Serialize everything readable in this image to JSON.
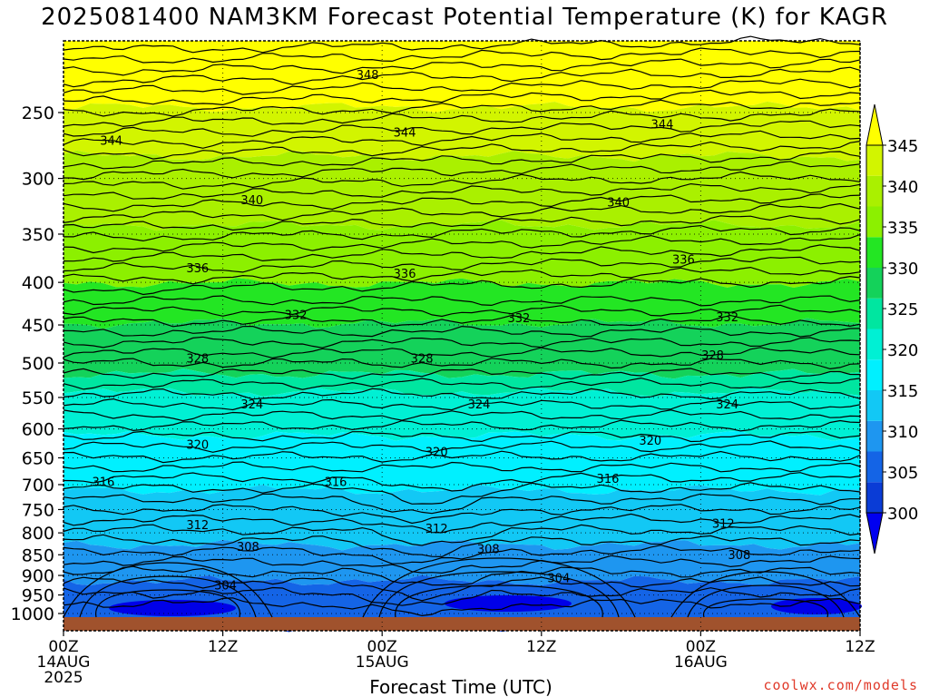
{
  "page": {
    "title": "2025081400 NAM3KM Forecast Potential Temperature (K) for KAGR",
    "credit": "coolwx.com/models"
  },
  "chart_data": {
    "type": "contour",
    "title": "2025081400 NAM3KM Forecast Potential Temperature (K) for KAGR",
    "xlabel": "Forecast Time (UTC)",
    "ylabel": "",
    "x_range_hours": [
      0,
      60
    ],
    "x_ticks": [
      {
        "hour": 0,
        "lines": [
          "00Z",
          "14AUG",
          "2025"
        ]
      },
      {
        "hour": 12,
        "lines": [
          "12Z"
        ]
      },
      {
        "hour": 24,
        "lines": [
          "00Z",
          "15AUG"
        ]
      },
      {
        "hour": 36,
        "lines": [
          "12Z"
        ]
      },
      {
        "hour": 48,
        "lines": [
          "00Z",
          "16AUG"
        ]
      },
      {
        "hour": 60,
        "lines": [
          "12Z"
        ]
      }
    ],
    "y_scale": "log-pressure",
    "y_range_hpa": [
      1040,
      200
    ],
    "y_ticks": [
      250,
      300,
      350,
      400,
      450,
      500,
      550,
      600,
      650,
      700,
      750,
      800,
      850,
      900,
      950,
      1000
    ],
    "grid": true,
    "colorbar": {
      "placement": "right",
      "levels": [
        300,
        305,
        310,
        315,
        320,
        325,
        330,
        335,
        340,
        345
      ],
      "labels": [
        "300",
        "305",
        "310",
        "315",
        "320",
        "325",
        "330",
        "335",
        "340",
        "345"
      ],
      "colors": [
        "#0000f0",
        "#0a3cd6",
        "#1464e6",
        "#1e96f0",
        "#12c8f5",
        "#00f0ff",
        "#00f0d4",
        "#00e6a0",
        "#14d25a",
        "#23e623",
        "#8cf000",
        "#aaf000",
        "#d2f500",
        "#ffff00"
      ]
    },
    "ground_color": "#a0522d",
    "contour_interval_K": 2,
    "contour_labels": [
      {
        "value": "348",
        "hour": 22.9,
        "hpa": 225
      },
      {
        "value": "344",
        "hour": 3.6,
        "hpa": 270
      },
      {
        "value": "344",
        "hour": 25.7,
        "hpa": 264
      },
      {
        "value": "344",
        "hour": 45.1,
        "hpa": 258
      },
      {
        "value": "340",
        "hour": 14.2,
        "hpa": 318
      },
      {
        "value": "340",
        "hour": 41.8,
        "hpa": 320
      },
      {
        "value": "336",
        "hour": 10.1,
        "hpa": 384
      },
      {
        "value": "336",
        "hour": 25.7,
        "hpa": 390
      },
      {
        "value": "336",
        "hour": 46.7,
        "hpa": 375
      },
      {
        "value": "332",
        "hour": 17.5,
        "hpa": 437
      },
      {
        "value": "332",
        "hour": 34.3,
        "hpa": 441
      },
      {
        "value": "332",
        "hour": 50.0,
        "hpa": 440
      },
      {
        "value": "328",
        "hour": 10.1,
        "hpa": 493
      },
      {
        "value": "328",
        "hour": 27.0,
        "hpa": 493
      },
      {
        "value": "328",
        "hour": 48.9,
        "hpa": 489
      },
      {
        "value": "324",
        "hour": 14.2,
        "hpa": 560
      },
      {
        "value": "324",
        "hour": 31.3,
        "hpa": 560
      },
      {
        "value": "324",
        "hour": 50.0,
        "hpa": 560
      },
      {
        "value": "320",
        "hour": 10.1,
        "hpa": 626
      },
      {
        "value": "320",
        "hour": 28.1,
        "hpa": 639
      },
      {
        "value": "320",
        "hour": 44.2,
        "hpa": 619
      },
      {
        "value": "316",
        "hour": 3.0,
        "hpa": 694
      },
      {
        "value": "316",
        "hour": 20.5,
        "hpa": 694
      },
      {
        "value": "316",
        "hour": 41.0,
        "hpa": 688
      },
      {
        "value": "312",
        "hour": 10.1,
        "hpa": 782
      },
      {
        "value": "312",
        "hour": 28.1,
        "hpa": 790
      },
      {
        "value": "312",
        "hour": 49.7,
        "hpa": 779
      },
      {
        "value": "308",
        "hour": 13.9,
        "hpa": 830
      },
      {
        "value": "308",
        "hour": 32.0,
        "hpa": 836
      },
      {
        "value": "308",
        "hour": 50.9,
        "hpa": 849
      },
      {
        "value": "304",
        "hour": 12.2,
        "hpa": 924
      },
      {
        "value": "304",
        "hour": 37.3,
        "hpa": 906
      }
    ]
  }
}
